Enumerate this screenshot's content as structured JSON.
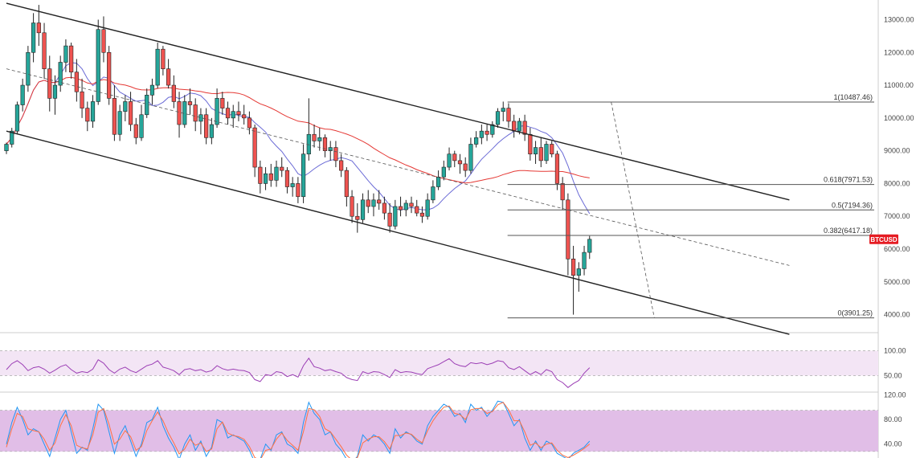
{
  "chart_data": {
    "type": "candlestick",
    "symbol_label": "BTCUSD",
    "price_axis": {
      "ylim": [
        3500,
        13600
      ],
      "ticks": [
        "13000.00",
        "12000.00",
        "11000.00",
        "10000.00",
        "9000.00",
        "8000.00",
        "7000.00",
        "6000.00",
        "5000.00",
        "4000.00"
      ]
    },
    "last_price": 6300,
    "fibonacci": [
      {
        "label": "1(10487.46)",
        "value": 10487.46
      },
      {
        "label": "0.618(7971.53)",
        "value": 7971.53
      },
      {
        "label": "0.5(7194.36)",
        "value": 7194.36
      },
      {
        "label": "0.382(6417.18)",
        "value": 6417.18
      },
      {
        "label": "0(3901.25)",
        "value": 3901.25
      }
    ],
    "channel": {
      "upper": [
        [
          0,
          13500
        ],
        [
          145,
          7500
        ]
      ],
      "lower": [
        [
          0,
          9600
        ],
        [
          145,
          3400
        ]
      ],
      "mid_dashed": [
        [
          0,
          11500
        ],
        [
          145,
          5500
        ]
      ],
      "swing_dashed": [
        [
          112,
          10487.46
        ],
        [
          120,
          3901.25
        ]
      ]
    },
    "candles_ohlc": [
      [
        0,
        9000,
        9250,
        8900,
        9200
      ],
      [
        1,
        9200,
        9700,
        9100,
        9600
      ],
      [
        2,
        9600,
        10500,
        9500,
        10400
      ],
      [
        3,
        10400,
        11200,
        10200,
        11000
      ],
      [
        4,
        11000,
        12200,
        10800,
        12000
      ],
      [
        5,
        12000,
        13200,
        11700,
        12900
      ],
      [
        6,
        12900,
        13450,
        12200,
        12600
      ],
      [
        7,
        12600,
        12900,
        11200,
        11500
      ],
      [
        8,
        11500,
        11900,
        10200,
        10600
      ],
      [
        9,
        10600,
        11300,
        10100,
        11000
      ],
      [
        10,
        11000,
        11900,
        10800,
        11700
      ],
      [
        11,
        11700,
        12400,
        11400,
        12200
      ],
      [
        12,
        12200,
        12300,
        11200,
        11400
      ],
      [
        13,
        11400,
        11800,
        10500,
        10800
      ],
      [
        14,
        10800,
        11200,
        10000,
        10300
      ],
      [
        15,
        10300,
        10500,
        9600,
        9900
      ],
      [
        16,
        9900,
        10700,
        9700,
        10500
      ],
      [
        17,
        10500,
        13000,
        10400,
        12700
      ],
      [
        18,
        12700,
        13100,
        11700,
        12000
      ],
      [
        19,
        12000,
        12200,
        10400,
        10600
      ],
      [
        20,
        10600,
        11000,
        9300,
        9500
      ],
      [
        21,
        9500,
        10400,
        9300,
        10200
      ],
      [
        22,
        10200,
        10700,
        9900,
        10500
      ],
      [
        23,
        10500,
        10800,
        9600,
        9800
      ],
      [
        24,
        9800,
        10000,
        9200,
        9400
      ],
      [
        25,
        9400,
        10400,
        9300,
        10100
      ],
      [
        26,
        10100,
        10900,
        10000,
        10700
      ],
      [
        27,
        10700,
        11200,
        10400,
        11000
      ],
      [
        28,
        11000,
        12300,
        10900,
        12100
      ],
      [
        29,
        12100,
        12200,
        11300,
        11500
      ],
      [
        30,
        11500,
        11800,
        10900,
        11000
      ],
      [
        31,
        11000,
        11300,
        10300,
        10500
      ],
      [
        32,
        10500,
        10800,
        9400,
        9800
      ],
      [
        33,
        9800,
        10700,
        9700,
        10500
      ],
      [
        34,
        10500,
        10900,
        10100,
        10400
      ],
      [
        35,
        10400,
        10600,
        9600,
        9900
      ],
      [
        36,
        9900,
        10300,
        9500,
        10100
      ],
      [
        37,
        10100,
        10300,
        9200,
        9400
      ],
      [
        38,
        9400,
        10000,
        9200,
        9800
      ],
      [
        39,
        9800,
        10900,
        9700,
        10600
      ],
      [
        40,
        10600,
        10800,
        10100,
        10300
      ],
      [
        41,
        10300,
        10500,
        9800,
        10000
      ],
      [
        42,
        10000,
        10400,
        9700,
        10200
      ],
      [
        43,
        10200,
        10500,
        9900,
        10100
      ],
      [
        44,
        10100,
        10400,
        9800,
        10000
      ],
      [
        45,
        10000,
        10200,
        9500,
        9700
      ],
      [
        46,
        9700,
        9800,
        8200,
        8500
      ],
      [
        47,
        8500,
        8700,
        7700,
        8000
      ],
      [
        48,
        8000,
        8500,
        7800,
        8300
      ],
      [
        49,
        8300,
        8600,
        7900,
        8100
      ],
      [
        50,
        8100,
        8700,
        7900,
        8500
      ],
      [
        51,
        8500,
        8800,
        8200,
        8400
      ],
      [
        52,
        8400,
        8500,
        7700,
        7900
      ],
      [
        53,
        7900,
        8200,
        7600,
        8000
      ],
      [
        54,
        8000,
        8200,
        7400,
        7600
      ],
      [
        55,
        7600,
        9200,
        7400,
        8900
      ],
      [
        56,
        8900,
        10600,
        8700,
        9500
      ],
      [
        57,
        9500,
        9800,
        9100,
        9300
      ],
      [
        58,
        9300,
        9700,
        9000,
        9400
      ],
      [
        59,
        9400,
        9500,
        8800,
        9000
      ],
      [
        60,
        9000,
        9300,
        8700,
        9100
      ],
      [
        61,
        9100,
        9300,
        8500,
        8700
      ],
      [
        62,
        8700,
        8900,
        8200,
        8400
      ],
      [
        63,
        8400,
        8500,
        7300,
        7600
      ],
      [
        64,
        7600,
        7800,
        6800,
        7000
      ],
      [
        65,
        7000,
        7400,
        6500,
        6900
      ],
      [
        66,
        6900,
        7700,
        6800,
        7500
      ],
      [
        67,
        7500,
        7800,
        7100,
        7300
      ],
      [
        68,
        7300,
        7700,
        7000,
        7500
      ],
      [
        69,
        7500,
        7800,
        7200,
        7400
      ],
      [
        70,
        7400,
        7600,
        6900,
        7100
      ],
      [
        71,
        7100,
        7400,
        6500,
        6700
      ],
      [
        72,
        6700,
        7500,
        6600,
        7300
      ],
      [
        73,
        7300,
        7600,
        7000,
        7200
      ],
      [
        74,
        7200,
        7500,
        7000,
        7400
      ],
      [
        75,
        7400,
        7600,
        7100,
        7300
      ],
      [
        76,
        7300,
        7500,
        7000,
        7100
      ],
      [
        77,
        7100,
        7300,
        6800,
        7000
      ],
      [
        78,
        7000,
        7700,
        6900,
        7500
      ],
      [
        79,
        7500,
        8100,
        7400,
        7900
      ],
      [
        80,
        7900,
        8400,
        7800,
        8200
      ],
      [
        81,
        8200,
        8700,
        8100,
        8500
      ],
      [
        82,
        8500,
        9100,
        8400,
        8900
      ],
      [
        83,
        8900,
        9000,
        8500,
        8700
      ],
      [
        84,
        8700,
        8900,
        8300,
        8600
      ],
      [
        85,
        8600,
        8800,
        8200,
        8400
      ],
      [
        86,
        8400,
        9400,
        8300,
        9200
      ],
      [
        87,
        9200,
        9600,
        9100,
        9400
      ],
      [
        88,
        9400,
        9800,
        9200,
        9600
      ],
      [
        89,
        9600,
        9800,
        9300,
        9500
      ],
      [
        90,
        9500,
        9900,
        9400,
        9800
      ],
      [
        91,
        9800,
        10300,
        9700,
        10200
      ],
      [
        92,
        10200,
        10500,
        9900,
        10300
      ],
      [
        93,
        10300,
        10450,
        9700,
        9900
      ],
      [
        94,
        9900,
        10100,
        9400,
        9600
      ],
      [
        95,
        9600,
        10000,
        9500,
        9900
      ],
      [
        96,
        9900,
        10100,
        9300,
        9500
      ],
      [
        97,
        9500,
        9700,
        8700,
        8900
      ],
      [
        98,
        8900,
        9300,
        8600,
        9100
      ],
      [
        99,
        9100,
        9400,
        8500,
        8700
      ],
      [
        100,
        8700,
        9300,
        8600,
        9200
      ],
      [
        101,
        9200,
        9300,
        8800,
        8900
      ],
      [
        102,
        8900,
        9000,
        7800,
        8000
      ],
      [
        103,
        8000,
        8200,
        7200,
        7500
      ],
      [
        104,
        7500,
        7700,
        5200,
        5700
      ],
      [
        105,
        5700,
        6100,
        4000,
        5200
      ],
      [
        106,
        5200,
        5600,
        4700,
        5400
      ],
      [
        107,
        5400,
        6100,
        5200,
        5900
      ],
      [
        108,
        5900,
        6400,
        5700,
        6300
      ]
    ]
  },
  "rsi_panel": {
    "ticks": [
      "100.00",
      "50.00"
    ],
    "values": [
      62,
      74,
      80,
      72,
      60,
      66,
      68,
      63,
      55,
      61,
      68,
      72,
      62,
      55,
      58,
      56,
      63,
      82,
      75,
      62,
      55,
      63,
      67,
      60,
      56,
      63,
      70,
      73,
      80,
      67,
      64,
      60,
      52,
      62,
      64,
      60,
      62,
      57,
      60,
      70,
      64,
      61,
      63,
      61,
      60,
      56,
      42,
      38,
      52,
      50,
      58,
      56,
      48,
      52,
      47,
      70,
      85,
      68,
      65,
      60,
      62,
      58,
      55,
      46,
      42,
      40,
      58,
      54,
      58,
      57,
      52,
      46,
      62,
      56,
      58,
      57,
      54,
      52,
      64,
      68,
      72,
      78,
      84,
      74,
      70,
      68,
      76,
      74,
      76,
      72,
      75,
      80,
      78,
      66,
      62,
      68,
      60,
      52,
      58,
      52,
      62,
      58,
      42,
      36,
      26,
      34,
      40,
      55,
      66
    ]
  },
  "stoch_panel": {
    "ticks": [
      "120.00",
      "80.00",
      "40.00"
    ],
    "k": [
      40,
      75,
      100,
      80,
      55,
      65,
      60,
      40,
      20,
      50,
      80,
      95,
      60,
      25,
      35,
      30,
      65,
      105,
      95,
      60,
      25,
      55,
      70,
      45,
      20,
      40,
      75,
      80,
      100,
      70,
      50,
      35,
      15,
      40,
      55,
      30,
      45,
      20,
      35,
      80,
      75,
      50,
      55,
      50,
      45,
      30,
      10,
      15,
      40,
      30,
      55,
      60,
      40,
      35,
      25,
      75,
      108,
      90,
      80,
      55,
      60,
      40,
      30,
      15,
      10,
      20,
      55,
      45,
      55,
      50,
      40,
      25,
      65,
      50,
      60,
      55,
      45,
      40,
      70,
      85,
      95,
      105,
      100,
      85,
      90,
      75,
      105,
      95,
      100,
      85,
      95,
      110,
      108,
      90,
      70,
      80,
      50,
      30,
      45,
      30,
      45,
      40,
      25,
      20,
      15,
      25,
      30,
      35,
      45
    ],
    "d": [
      35,
      65,
      90,
      85,
      65,
      62,
      60,
      48,
      30,
      42,
      70,
      88,
      70,
      38,
      34,
      32,
      55,
      92,
      98,
      72,
      40,
      48,
      62,
      52,
      30,
      36,
      62,
      78,
      92,
      78,
      58,
      42,
      24,
      32,
      48,
      38,
      42,
      28,
      32,
      65,
      76,
      58,
      54,
      52,
      48,
      36,
      18,
      14,
      30,
      32,
      48,
      58,
      46,
      38,
      30,
      60,
      98,
      96,
      85,
      65,
      60,
      48,
      36,
      22,
      14,
      18,
      42,
      48,
      52,
      52,
      44,
      32,
      54,
      54,
      58,
      56,
      48,
      42,
      62,
      78,
      90,
      100,
      102,
      90,
      88,
      80,
      96,
      98,
      98,
      90,
      93,
      104,
      108,
      96,
      78,
      78,
      60,
      38,
      42,
      34,
      40,
      42,
      30,
      22,
      18,
      22,
      27,
      33,
      40
    ]
  },
  "colors": {
    "up_candle": "#26a69a",
    "down_candle": "#ef5350",
    "outline": "#222222",
    "ma_fast": "#6b6bd6",
    "ma_slow": "#e53935",
    "fib_line": "#555555",
    "tag_bg": "#e51c23",
    "rsi_line": "#9c3fb5",
    "rsi_band": "#f3e5f5",
    "stoch_band": "#e1bee7",
    "stoch_k": "#2196f3",
    "stoch_d": "#ff7043"
  }
}
